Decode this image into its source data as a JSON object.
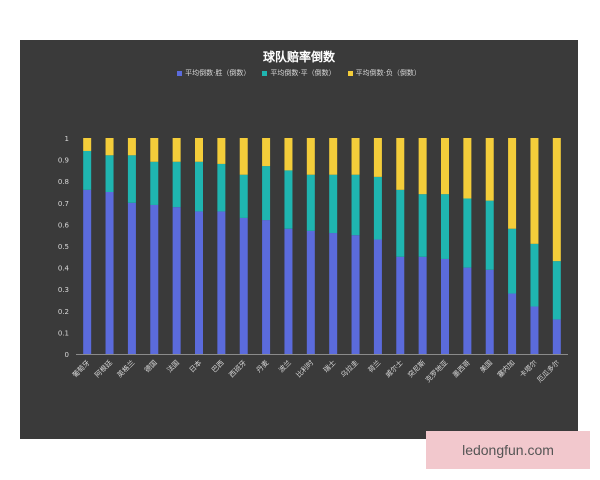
{
  "chart_data": {
    "type": "bar",
    "stacked": true,
    "title": "球队赔率倒数",
    "categories": [
      "葡萄牙",
      "阿根廷",
      "英格兰",
      "德国",
      "法国",
      "日本",
      "巴西",
      "西班牙",
      "丹麦",
      "波兰",
      "比利时",
      "瑞士",
      "乌拉圭",
      "荷兰",
      "威尔士",
      "突尼斯",
      "克罗地亚",
      "墨西哥",
      "美国",
      "塞内加",
      "卡塔尔",
      "厄瓜多尔"
    ],
    "series": [
      {
        "name": "平均倒数·胜（倒数）",
        "color": "#5b6bdc",
        "values": [
          0.76,
          0.75,
          0.7,
          0.69,
          0.68,
          0.66,
          0.66,
          0.63,
          0.62,
          0.58,
          0.57,
          0.56,
          0.55,
          0.53,
          0.45,
          0.45,
          0.44,
          0.4,
          0.39,
          0.28,
          0.22,
          0.16
        ]
      },
      {
        "name": "平均倒数·平（倒数）",
        "color": "#1fb5b0",
        "values": [
          0.18,
          0.17,
          0.22,
          0.2,
          0.21,
          0.23,
          0.22,
          0.2,
          0.25,
          0.27,
          0.26,
          0.27,
          0.28,
          0.29,
          0.31,
          0.29,
          0.3,
          0.32,
          0.32,
          0.3,
          0.29,
          0.27
        ]
      },
      {
        "name": "平均倒数·负（倒数）",
        "color": "#f4cd3a",
        "values": [
          0.06,
          0.08,
          0.08,
          0.11,
          0.11,
          0.11,
          0.12,
          0.17,
          0.13,
          0.15,
          0.17,
          0.17,
          0.17,
          0.18,
          0.24,
          0.26,
          0.26,
          0.28,
          0.29,
          0.42,
          0.49,
          0.57
        ]
      }
    ],
    "ylim": [
      0,
      1
    ],
    "yticks": [
      "0",
      "0.1",
      "0.2",
      "0.3",
      "0.4",
      "0.5",
      "0.6",
      "0.7",
      "0.8",
      "0.9",
      "1"
    ],
    "legend_position": "top-center",
    "grid": false
  },
  "colors": {
    "background": "#3a3a3a",
    "text": "#d8d8d8"
  },
  "watermark": "ledongfun.com"
}
